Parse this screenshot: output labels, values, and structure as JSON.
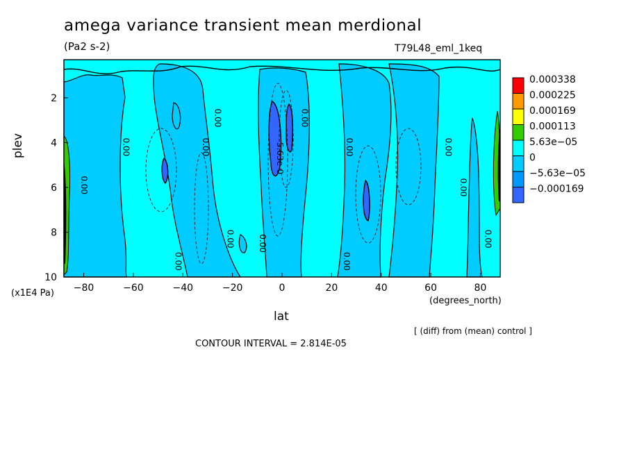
{
  "header": {
    "title": "amega variance transient mean merdional",
    "units": "(Pa2 s-2)",
    "run": "T79L48_eml_1keq"
  },
  "footer": {
    "diff_note": "[ (diff) from (mean) control ]",
    "contour_interval": "CONTOUR INTERVAL = 2.814E-05"
  },
  "chart_data": {
    "type": "heatmap",
    "title": "amega variance transient mean merdional",
    "xlabel": "lat",
    "xunits": "(degrees_north)",
    "ylabel": "plev",
    "yunits": "(x1E4 Pa)",
    "xlim": [
      -88,
      88
    ],
    "ylim": [
      0.3,
      10
    ],
    "y_inverted": true,
    "x_ticks": [
      -80,
      -60,
      -40,
      -20,
      0,
      20,
      40,
      60,
      80
    ],
    "y_ticks": [
      2,
      4,
      6,
      8,
      10
    ],
    "legend_levels": [
      "0.000338",
      "0.000225",
      "0.000169",
      "0.000113",
      "5.63e-05",
      "0",
      "-5.63e-05",
      "-0.000169"
    ],
    "legend_colors": [
      "#ff0000",
      "#ff9900",
      "#ffff00",
      "#33cc00",
      "#00ffff",
      "#00ccff",
      "#0099ff",
      "#3366ff"
    ],
    "legend_position": "right",
    "contour_interval": "2.814E-05",
    "contour_labels": [
      {
        "text": "0.00",
        "lat": -81,
        "plev": 5.9
      },
      {
        "text": "0.00",
        "lat": -64,
        "plev": 4.2
      },
      {
        "text": "0.00",
        "lat": -32,
        "plev": 4.2
      },
      {
        "text": "0.00",
        "lat": -27,
        "plev": 2.9
      },
      {
        "text": "0.00",
        "lat": -43,
        "plev": 9.3
      },
      {
        "text": "0.00",
        "lat": -22,
        "plev": 8.3
      },
      {
        "text": "0.00",
        "lat": -9,
        "plev": 8.5
      },
      {
        "text": "5.63e-0",
        "lat": -2,
        "plev": 4.7
      },
      {
        "text": "0.00",
        "lat": 8,
        "plev": 2.9
      },
      {
        "text": "0.00",
        "lat": 26,
        "plev": 4.2
      },
      {
        "text": "0.00",
        "lat": 25,
        "plev": 9.3
      },
      {
        "text": "0.00",
        "lat": 66,
        "plev": 4.2
      },
      {
        "text": "0.00",
        "lat": 72,
        "plev": 6.0
      },
      {
        "text": "0.00",
        "lat": 82,
        "plev": 8.3
      }
    ]
  }
}
